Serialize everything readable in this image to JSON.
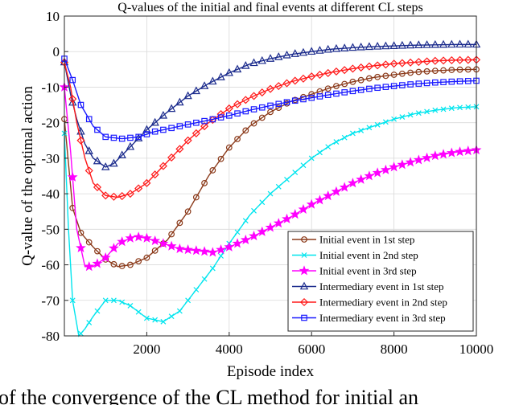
{
  "chart_data": {
    "type": "line",
    "title": "Q-values of the initial and final events at different CL steps",
    "xlabel": "Episode index",
    "ylabel": "Q-value of the optimal action",
    "xlim": [
      0,
      10000
    ],
    "ylim": [
      -80,
      10
    ],
    "xticks": [
      2000,
      4000,
      6000,
      8000,
      10000
    ],
    "yticks": [
      10,
      0,
      -10,
      -20,
      -30,
      -40,
      -50,
      -60,
      -70,
      -80
    ],
    "grid": true,
    "legend_position": "bottom-right",
    "series": [
      {
        "name": "Initial event in 1st step",
        "color": "#8b3a1a",
        "marker": "circle",
        "x": [
          0,
          200,
          400,
          700,
          1000,
          1300,
          1600,
          2000,
          2500,
          3000,
          3500,
          4000,
          4500,
          5000,
          5500,
          6000,
          6500,
          7000,
          7500,
          8000,
          8500,
          9000,
          9500,
          10000
        ],
        "y": [
          -19,
          -44,
          -51,
          -55,
          -58.5,
          -60.5,
          -60,
          -58,
          -53,
          -45,
          -35,
          -27,
          -21,
          -17,
          -14,
          -12,
          -10,
          -8.5,
          -7.3,
          -6.5,
          -5.8,
          -5.4,
          -5.1,
          -5
        ]
      },
      {
        "name": "Initial event in 2nd step",
        "color": "#00e5ee",
        "marker": "x",
        "x": [
          0,
          100,
          200,
          350,
          500,
          700,
          1000,
          1300,
          1600,
          2000,
          2400,
          2800,
          3200,
          3600,
          4000,
          4500,
          5000,
          5500,
          6000,
          6500,
          7000,
          7500,
          8000,
          8500,
          9000,
          9500,
          10000
        ],
        "y": [
          -23,
          -50,
          -70,
          -80,
          -78,
          -74.5,
          -70,
          -70,
          -71.5,
          -75,
          -76,
          -73,
          -67,
          -61,
          -54,
          -46,
          -40,
          -35,
          -30,
          -26,
          -23,
          -21,
          -19,
          -17.5,
          -16.5,
          -15.8,
          -15.5
        ]
      },
      {
        "name": "Initial event in 3rd step",
        "color": "#ff00ff",
        "marker": "star",
        "x": [
          0,
          150,
          300,
          500,
          700,
          1000,
          1300,
          1700,
          2000,
          2400,
          2800,
          3200,
          3600,
          4000,
          4500,
          5000,
          5500,
          6000,
          6500,
          7000,
          7500,
          8000,
          8500,
          9000,
          9500,
          10000
        ],
        "y": [
          -10,
          -28,
          -50,
          -60.5,
          -60.5,
          -58,
          -54,
          -52,
          -52.5,
          -54,
          -55.5,
          -56,
          -56.5,
          -55,
          -52.5,
          -49.5,
          -46.5,
          -43,
          -40,
          -37,
          -34.5,
          -32.5,
          -30.8,
          -29.3,
          -28.3,
          -27.7
        ]
      },
      {
        "name": "Intermediary event in 1st step",
        "color": "#1a2a8c",
        "marker": "triangle",
        "x": [
          0,
          150,
          300,
          500,
          700,
          1000,
          1200,
          1500,
          2000,
          2500,
          3000,
          3500,
          4000,
          4500,
          5000,
          5500,
          6000,
          6500,
          7000,
          7500,
          8000,
          8500,
          9000,
          9500,
          10000
        ],
        "y": [
          -3,
          -12,
          -19,
          -26,
          -30,
          -32.5,
          -31.5,
          -28,
          -22,
          -17,
          -12.5,
          -9,
          -6,
          -3.5,
          -2,
          -0.8,
          0,
          0.7,
          1.1,
          1.4,
          1.6,
          1.8,
          1.9,
          2,
          2
        ]
      },
      {
        "name": "Intermediary event in 2nd step",
        "color": "#ff1a1a",
        "marker": "diamond",
        "x": [
          0,
          150,
          300,
          500,
          700,
          1000,
          1300,
          1600,
          2000,
          2500,
          3000,
          3500,
          4000,
          4500,
          5000,
          5500,
          6000,
          6500,
          7000,
          7500,
          8000,
          8500,
          9000,
          9500,
          10000
        ],
        "y": [
          -3,
          -10,
          -20,
          -30,
          -37,
          -40.5,
          -41,
          -40,
          -37,
          -31,
          -25,
          -20,
          -16,
          -13,
          -10.5,
          -8.5,
          -7,
          -5.8,
          -4.8,
          -4,
          -3.4,
          -3,
          -2.6,
          -2.4,
          -2.3
        ]
      },
      {
        "name": "Intermediary event in 3rd step",
        "color": "#1a1aff",
        "marker": "square",
        "x": [
          0,
          200,
          400,
          700,
          1000,
          1400,
          1800,
          2200,
          2600,
          3000,
          3500,
          4000,
          4500,
          5000,
          5500,
          6000,
          6500,
          7000,
          7500,
          8000,
          8500,
          9000,
          9500,
          10000
        ],
        "y": [
          -2,
          -8,
          -15,
          -21,
          -24,
          -24.5,
          -24,
          -22.5,
          -21.5,
          -20.5,
          -19.3,
          -18,
          -16.5,
          -15.2,
          -14,
          -13,
          -12,
          -11.1,
          -10.3,
          -9.7,
          -9.1,
          -8.7,
          -8.4,
          -8.2
        ]
      }
    ]
  },
  "caption_fragment": "of the convergence of the CL method for initial an"
}
